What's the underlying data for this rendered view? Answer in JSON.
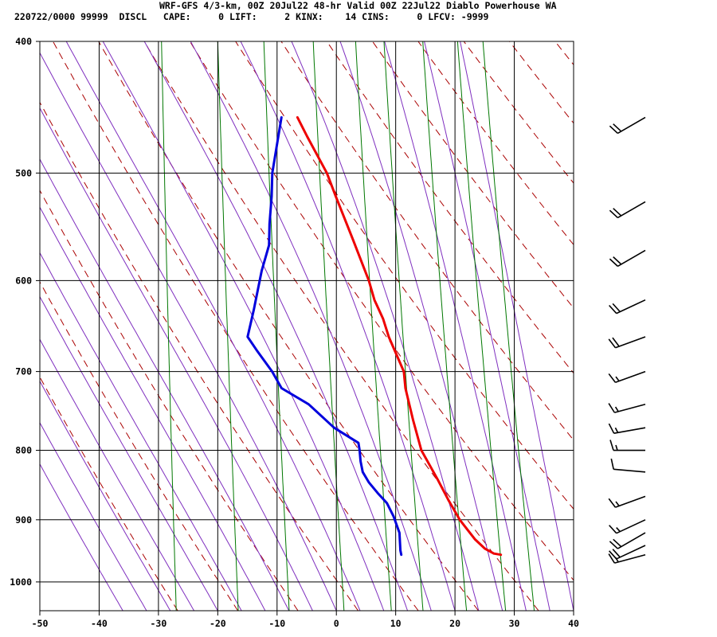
{
  "header": {
    "title": "WRF-GFS 4/3-km, 00Z 20Jul22 48-hr Valid 00Z 22Jul22 Diablo Powerhouse WA",
    "stats": "220722/0000 99999  DISCL   CAPE:     0 LIFT:     2 KINX:    14 CINS:     0 LFCV: -9999"
  },
  "chart_data": {
    "type": "line",
    "title": "WRF-GFS 4/3-km, 00Z 20Jul22 48-hr Valid 00Z 22Jul22 Diablo Powerhouse WA",
    "xlabel": "",
    "ylabel": "",
    "x_ticks": [
      -50,
      -40,
      -30,
      -20,
      -10,
      0,
      10,
      20,
      30,
      40
    ],
    "p_ticks": [
      400,
      500,
      600,
      700,
      800,
      900,
      1000
    ],
    "xlim": [
      -50,
      40
    ],
    "plim": [
      400,
      1050
    ],
    "skew_degC_per_decade": 18,
    "grid": true,
    "colors": {
      "temperature": "#ee0000",
      "dewpoint": "#0000dd",
      "dry_adiabat": "#aa0000",
      "moist_adiabat": "#7f2fbf",
      "mixing_ratio": "#007700",
      "grid": "#000000"
    },
    "series": [
      {
        "key": "temperature",
        "points": [
          [
            955,
            27.0
          ],
          [
            953,
            25.8
          ],
          [
            945,
            24.2
          ],
          [
            930,
            22.4
          ],
          [
            900,
            19.6
          ],
          [
            870,
            17.4
          ],
          [
            840,
            15.3
          ],
          [
            800,
            12.2
          ],
          [
            760,
            10.4
          ],
          [
            720,
            8.7
          ],
          [
            700,
            8.2
          ],
          [
            660,
            5.2
          ],
          [
            640,
            4.0
          ],
          [
            620,
            2.3
          ],
          [
            600,
            1.1
          ],
          [
            560,
            -2.1
          ],
          [
            520,
            -5.6
          ],
          [
            500,
            -7.4
          ],
          [
            470,
            -11.2
          ],
          [
            455,
            -13.1
          ]
        ]
      },
      {
        "key": "dewpoint",
        "points": [
          [
            955,
            10.2
          ],
          [
            948,
            10.0
          ],
          [
            920,
            9.6
          ],
          [
            895,
            8.4
          ],
          [
            875,
            7.1
          ],
          [
            860,
            5.4
          ],
          [
            845,
            3.8
          ],
          [
            830,
            2.6
          ],
          [
            815,
            2.1
          ],
          [
            800,
            1.8
          ],
          [
            790,
            1.5
          ],
          [
            770,
            -2.8
          ],
          [
            740,
            -7.4
          ],
          [
            720,
            -12.2
          ],
          [
            700,
            -14.0
          ],
          [
            675,
            -16.9
          ],
          [
            660,
            -18.6
          ],
          [
            630,
            -17.9
          ],
          [
            590,
            -17.1
          ],
          [
            565,
            -16.2
          ],
          [
            545,
            -16.4
          ],
          [
            520,
            -16.4
          ],
          [
            500,
            -16.6
          ],
          [
            455,
            -15.8
          ]
        ]
      }
    ],
    "wind_barbs": [
      {
        "p": 455,
        "dir": 240,
        "kt": 20
      },
      {
        "p": 525,
        "dir": 240,
        "kt": 20
      },
      {
        "p": 570,
        "dir": 240,
        "kt": 20
      },
      {
        "p": 620,
        "dir": 245,
        "kt": 20
      },
      {
        "p": 660,
        "dir": 250,
        "kt": 20
      },
      {
        "p": 700,
        "dir": 250,
        "kt": 15
      },
      {
        "p": 740,
        "dir": 255,
        "kt": 15
      },
      {
        "p": 770,
        "dir": 260,
        "kt": 15
      },
      {
        "p": 800,
        "dir": 270,
        "kt": 15
      },
      {
        "p": 830,
        "dir": 275,
        "kt": 10
      },
      {
        "p": 865,
        "dir": 250,
        "kt": 15
      },
      {
        "p": 900,
        "dir": 245,
        "kt": 15
      },
      {
        "p": 920,
        "dir": 240,
        "kt": 20
      },
      {
        "p": 940,
        "dir": 245,
        "kt": 20
      },
      {
        "p": 955,
        "dir": 255,
        "kt": 15
      }
    ]
  }
}
